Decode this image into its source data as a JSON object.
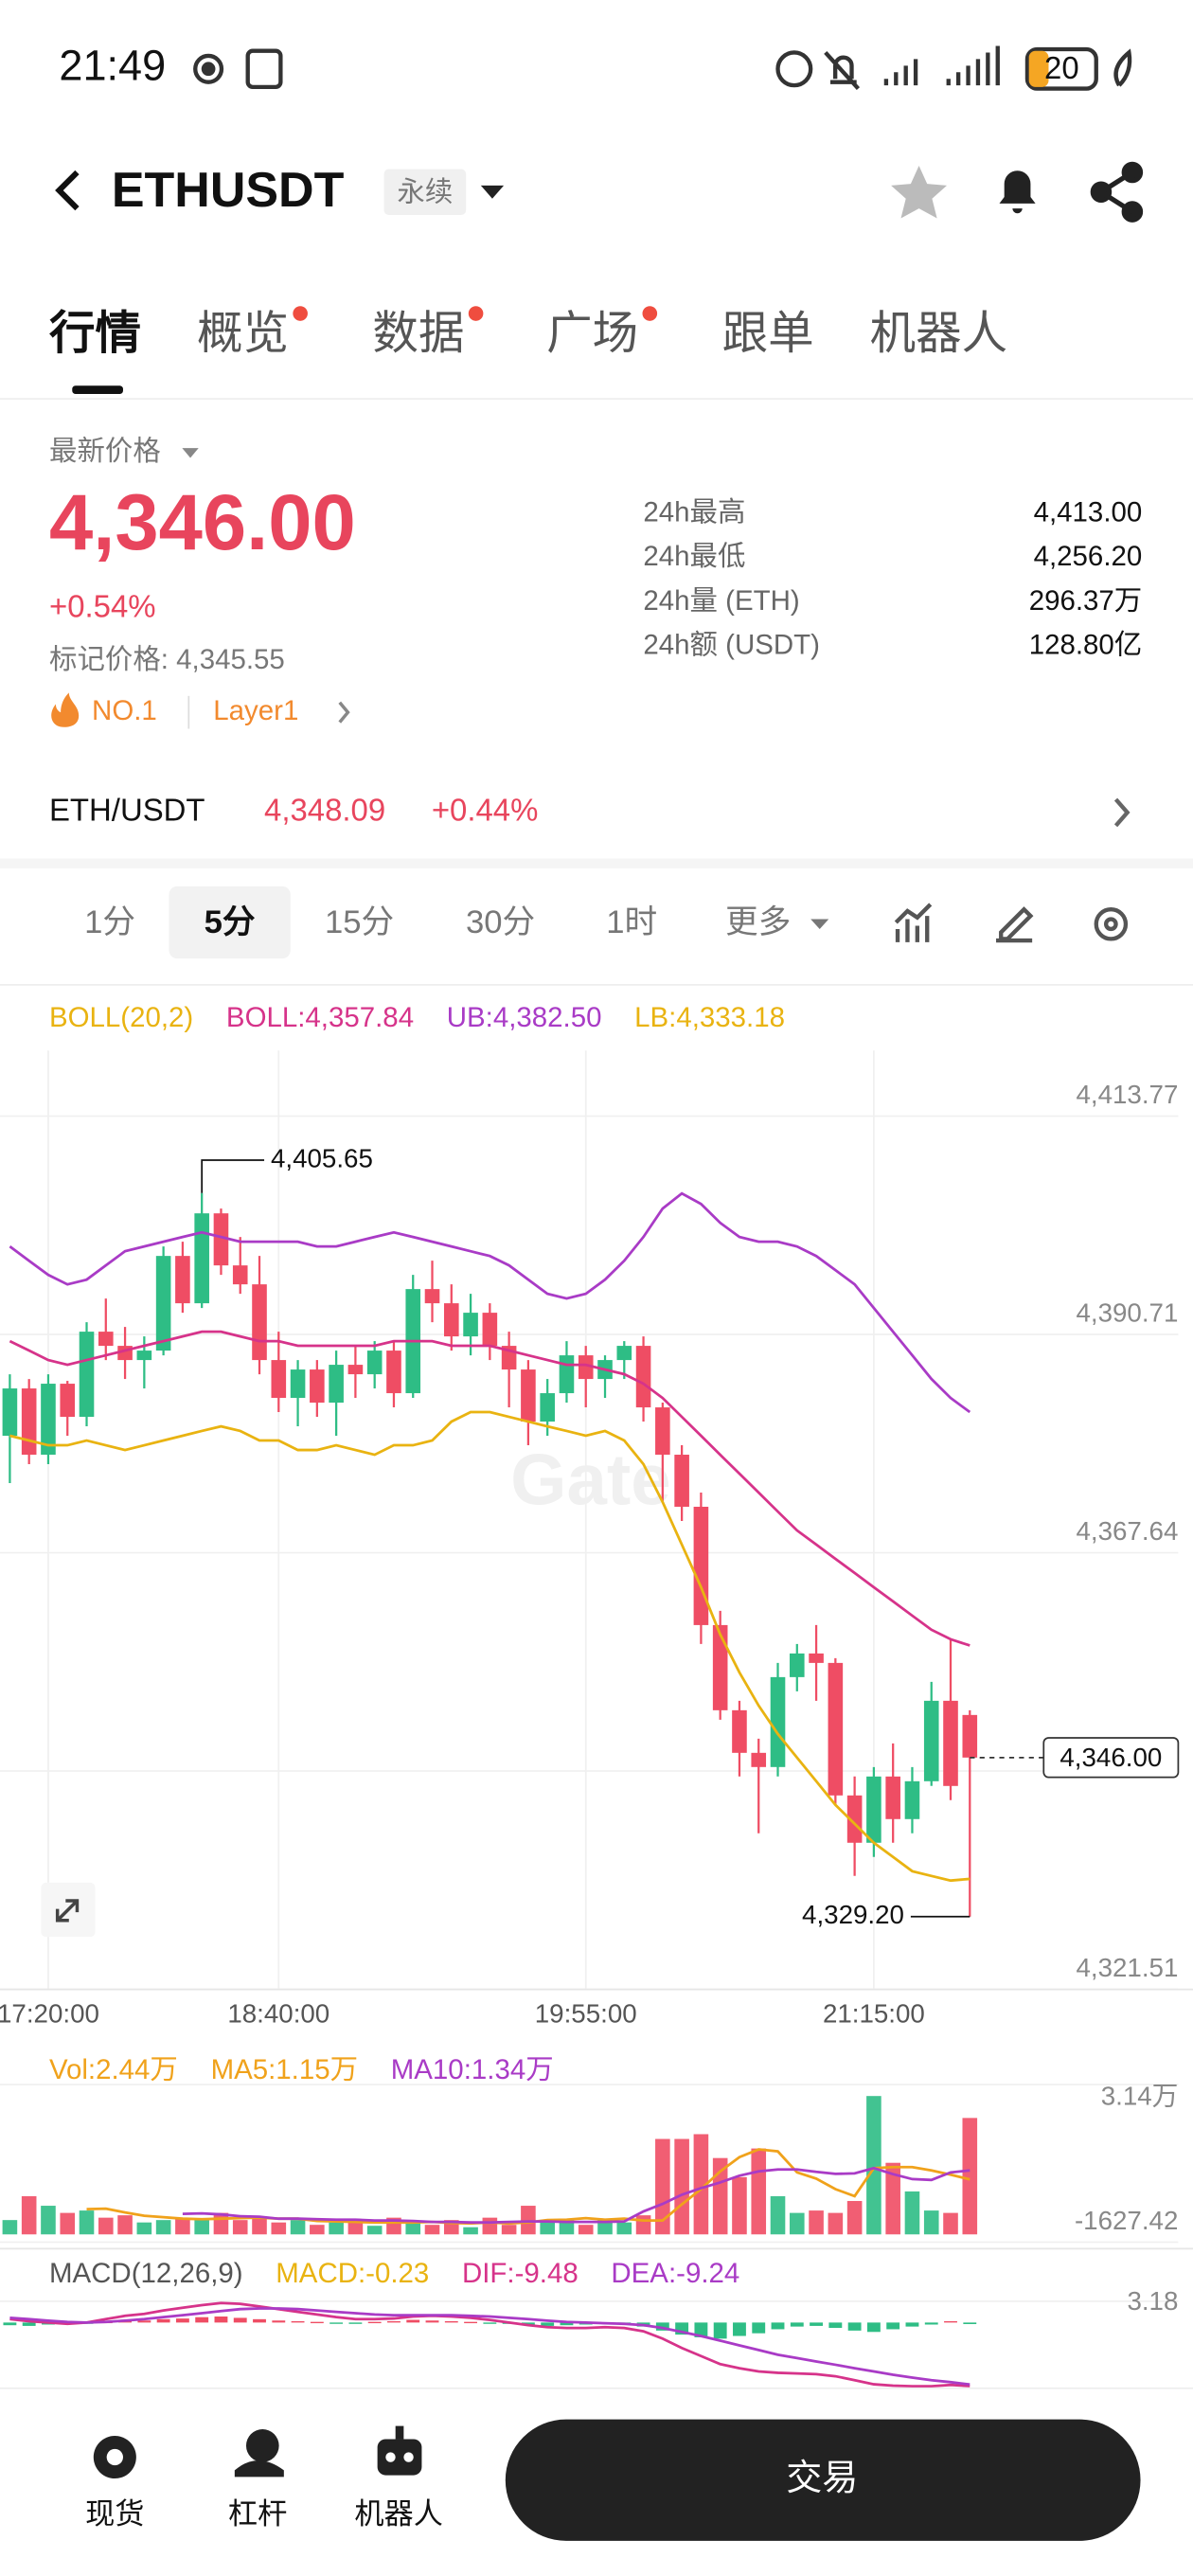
{
  "status_bar": {
    "time": "21:49",
    "battery": "20"
  },
  "header": {
    "symbol": "ETHUSDT",
    "contract": "永续"
  },
  "tabs": {
    "items": [
      "行情",
      "概览",
      "数据",
      "广场",
      "跟单",
      "机器人"
    ],
    "active": 0,
    "dots": [
      1,
      2,
      3
    ]
  },
  "ticker": {
    "price_label": "最新价格",
    "price": "4,346.00",
    "change": "+0.54%",
    "mark_price": "标记价格: 4,345.55",
    "rank": "NO.1",
    "sector": "Layer1",
    "stats": [
      [
        "24h最高",
        "4,413.00"
      ],
      [
        "24h最低",
        "4,256.20"
      ],
      [
        "24h量 (ETH)",
        "296.37万"
      ],
      [
        "24h额 (USDT)",
        "128.80亿"
      ]
    ]
  },
  "index_row": {
    "pair": "ETH/USDT",
    "price": "4,348.09",
    "change": "+0.44%"
  },
  "intervals": {
    "items": [
      "1分",
      "5分",
      "15分",
      "30分",
      "1时",
      "更多"
    ],
    "active": 1
  },
  "chart_data": [
    {
      "type": "candlestick",
      "indicator": "BOLL(20,2)",
      "watermark": "Gate",
      "up_color": "#2ebd85",
      "down_color": "#ef4d64",
      "categories": [
        null,
        null,
        "17:20:00",
        null,
        null,
        null,
        null,
        null,
        null,
        null,
        null,
        null,
        null,
        null,
        "18:40:00",
        null,
        null,
        null,
        null,
        null,
        null,
        null,
        null,
        null,
        null,
        null,
        null,
        null,
        null,
        null,
        "19:55:00",
        null,
        null,
        null,
        null,
        null,
        null,
        null,
        null,
        null,
        null,
        null,
        null,
        null,
        null,
        "21:15:00",
        null,
        null,
        null,
        null,
        null
      ],
      "candles": [
        [
          4380.0,
          4386.5,
          4375.0,
          4385.0
        ],
        [
          4385.0,
          4386.0,
          4377.0,
          4378.0
        ],
        [
          4378.0,
          4386.5,
          4377.0,
          4385.5
        ],
        [
          4385.5,
          4385.8,
          4380.0,
          4382.0
        ],
        [
          4382.0,
          4392.0,
          4381.0,
          4391.0
        ],
        [
          4391.0,
          4394.5,
          4388.0,
          4389.5
        ],
        [
          4389.5,
          4391.5,
          4386.0,
          4388.0
        ],
        [
          4388.0,
          4390.5,
          4385.0,
          4389.0
        ],
        [
          4389.0,
          4400.0,
          4388.5,
          4399.0
        ],
        [
          4399.0,
          4400.5,
          4393.0,
          4394.0
        ],
        [
          4394.0,
          4405.65,
          4393.5,
          4403.5
        ],
        [
          4403.5,
          4404.0,
          4397.0,
          4398.0
        ],
        [
          4398.0,
          4401.0,
          4395.0,
          4396.0
        ],
        [
          4396.0,
          4399.0,
          4386.5,
          4388.0
        ],
        [
          4388.0,
          4391.0,
          4382.5,
          4384.0
        ],
        [
          4384.0,
          4388.0,
          4381.0,
          4387.0
        ],
        [
          4387.0,
          4388.0,
          4382.0,
          4383.5
        ],
        [
          4383.5,
          4389.0,
          4380.0,
          4387.5
        ],
        [
          4387.5,
          4389.5,
          4384.0,
          4386.5
        ],
        [
          4386.5,
          4390.0,
          4385.0,
          4389.0
        ],
        [
          4389.0,
          4390.0,
          4383.0,
          4384.5
        ],
        [
          4384.5,
          4397.0,
          4384.0,
          4395.5
        ],
        [
          4395.5,
          4398.5,
          4392.0,
          4394.0
        ],
        [
          4394.0,
          4396.0,
          4389.0,
          4390.5
        ],
        [
          4390.5,
          4395.0,
          4388.5,
          4393.0
        ],
        [
          4393.0,
          4394.0,
          4388.0,
          4389.5
        ],
        [
          4389.5,
          4391.0,
          4383.0,
          4387.0
        ],
        [
          4387.0,
          4388.0,
          4379.0,
          4381.5
        ],
        [
          4381.5,
          4386.0,
          4380.0,
          4384.5
        ],
        [
          4384.5,
          4390.0,
          4383.5,
          4388.5
        ],
        [
          4388.5,
          4389.5,
          4383.0,
          4386.0
        ],
        [
          4386.0,
          4388.5,
          4384.0,
          4388.0
        ],
        [
          4388.0,
          4390.0,
          4386.0,
          4389.5
        ],
        [
          4389.5,
          4390.5,
          4381.5,
          4383.0
        ],
        [
          4383.0,
          4383.5,
          4373.0,
          4378.0
        ],
        [
          4378.0,
          4379.0,
          4371.0,
          4372.5
        ],
        [
          4372.5,
          4374.0,
          4358.0,
          4360.0
        ],
        [
          4360.0,
          4361.5,
          4350.0,
          4351.0
        ],
        [
          4351.0,
          4352.0,
          4344.0,
          4346.5
        ],
        [
          4346.5,
          4348.0,
          4338.0,
          4345.0
        ],
        [
          4345.0,
          4356.0,
          4344.0,
          4354.5
        ],
        [
          4354.5,
          4358.0,
          4353.0,
          4357.0
        ],
        [
          4357.0,
          4360.0,
          4352.0,
          4356.0
        ],
        [
          4356.0,
          4356.5,
          4341.0,
          4342.0
        ],
        [
          4342.0,
          4344.0,
          4333.5,
          4337.0
        ],
        [
          4337.0,
          4345.0,
          4335.5,
          4344.0
        ],
        [
          4344.0,
          4347.5,
          4337.0,
          4339.5
        ],
        [
          4339.5,
          4345.0,
          4338.0,
          4343.5
        ],
        [
          4343.5,
          4354.0,
          4343.0,
          4352.0
        ],
        [
          4352.0,
          4358.5,
          4341.5,
          4343.0
        ],
        [
          4350.5,
          4351.0,
          4329.2,
          4346.0
        ]
      ],
      "series": [
        {
          "name": "BOLL:4,357.84",
          "color": "#d6338a",
          "values": [
            4390.0,
            4389.0,
            4388.0,
            4387.5,
            4388.0,
            4388.5,
            4389.0,
            4389.5,
            4390.0,
            4390.5,
            4391.0,
            4391.0,
            4390.5,
            4390.0,
            4390.0,
            4389.5,
            4389.5,
            4389.5,
            4389.5,
            4389.5,
            4390.0,
            4390.0,
            4390.0,
            4389.5,
            4389.5,
            4389.5,
            4389.0,
            4388.5,
            4388.0,
            4387.5,
            4387.5,
            4387.0,
            4386.5,
            4385.5,
            4384.0,
            4382.0,
            4380.0,
            4378.0,
            4376.0,
            4374.0,
            4372.0,
            4370.0,
            4368.5,
            4367.0,
            4365.5,
            4364.0,
            4362.5,
            4361.0,
            4359.5,
            4358.5,
            4357.84
          ]
        },
        {
          "name": "UB:4,382.50",
          "color": "#a93bc6",
          "values": [
            4400.0,
            4398.5,
            4397.0,
            4396.0,
            4396.5,
            4398.0,
            4399.5,
            4400.0,
            4400.5,
            4401.0,
            4401.5,
            4401.0,
            4400.5,
            4400.5,
            4400.5,
            4400.5,
            4400.0,
            4400.0,
            4400.5,
            4401.0,
            4401.5,
            4401.0,
            4400.5,
            4400.0,
            4399.5,
            4399.0,
            4398.0,
            4396.5,
            4395.0,
            4394.5,
            4395.0,
            4396.5,
            4398.5,
            4401.0,
            4404.0,
            4405.6,
            4404.5,
            4402.5,
            4401.0,
            4400.5,
            4400.5,
            4400.0,
            4399.0,
            4397.5,
            4396.0,
            4393.5,
            4391.0,
            4388.5,
            4386.0,
            4384.0,
            4382.5
          ]
        },
        {
          "name": "LB:4,333.18",
          "color": "#e9b311",
          "values": [
            4380.0,
            4379.5,
            4379.0,
            4379.0,
            4379.5,
            4379.0,
            4378.5,
            4379.0,
            4379.5,
            4380.0,
            4380.5,
            4381.0,
            4380.5,
            4379.5,
            4379.5,
            4378.5,
            4378.5,
            4379.0,
            4378.5,
            4378.0,
            4379.0,
            4379.0,
            4379.5,
            4381.5,
            4382.5,
            4382.5,
            4382.0,
            4381.5,
            4381.0,
            4380.5,
            4380.0,
            4380.5,
            4379.5,
            4377.0,
            4373.0,
            4368.5,
            4364.0,
            4359.0,
            4355.0,
            4351.5,
            4348.5,
            4346.0,
            4343.5,
            4341.0,
            4339.0,
            4337.0,
            4335.5,
            4334.0,
            4333.5,
            4333.0,
            4333.18
          ]
        }
      ],
      "ylim": [
        4321.51,
        4413.77
      ],
      "yticks": [
        {
          "value": 4321.51,
          "label": "4,321.51"
        },
        {
          "value": 4344.58,
          "label": ""
        },
        {
          "value": 4367.64,
          "label": "4,367.64"
        },
        {
          "value": 4390.71,
          "label": "4,390.71"
        },
        {
          "value": 4413.77,
          "label": "4,413.77"
        }
      ],
      "annotations": {
        "high": {
          "value": 4405.65,
          "label": "4,405.65"
        },
        "low": {
          "value": 4329.2,
          "label": "4,329.20"
        },
        "last": {
          "value": 4346.0,
          "label": "4,346.00"
        }
      },
      "grid": true
    },
    {
      "type": "volume",
      "series": [
        {
          "name": "Vol:2.44万",
          "color": "#f0a21b",
          "values": [
            3000,
            8000,
            6000,
            4500,
            5000,
            3500,
            4000,
            2500,
            3000,
            3500,
            3000,
            4500,
            3000,
            3500,
            2500,
            3000,
            2000,
            2500,
            3000,
            1800,
            3500,
            2500,
            2000,
            3000,
            1500,
            3500,
            2000,
            6000,
            2500,
            3000,
            2000,
            3000,
            2500,
            4000,
            20000,
            20000,
            21000,
            16000,
            12000,
            18000,
            8000,
            4500,
            5000,
            4500,
            7000,
            29000,
            15000,
            9000,
            5000,
            4500,
            24400
          ]
        },
        {
          "name": "MA5:1.15万",
          "color": "#f0a21b",
          "values": [
            null,
            null,
            null,
            null,
            5300,
            5400,
            4600,
            3900,
            3600,
            3300,
            3200,
            3300,
            3400,
            3500,
            3300,
            3300,
            2800,
            2700,
            2600,
            2500,
            2500,
            2500,
            2600,
            2400,
            2300,
            2500,
            2300,
            2500,
            3000,
            3100,
            3400,
            3100,
            3300,
            2900,
            2900,
            6300,
            9500,
            13200,
            16200,
            17800,
            17400,
            13000,
            11700,
            9500,
            8000,
            13900,
            14100,
            14100,
            13400,
            12500,
            11500
          ]
        },
        {
          "name": "MA10:1.34万",
          "color": "#a93bc6",
          "values": [
            null,
            null,
            null,
            null,
            null,
            null,
            null,
            null,
            null,
            4300,
            4400,
            4200,
            3800,
            3700,
            3300,
            3300,
            3200,
            3100,
            3100,
            2900,
            2900,
            2800,
            2600,
            2600,
            2500,
            2500,
            2600,
            2700,
            2700,
            2600,
            2600,
            2600,
            2700,
            4800,
            6400,
            8300,
            9700,
            10900,
            12300,
            13200,
            13600,
            13600,
            13100,
            12700,
            12800,
            13900,
            12600,
            11600,
            11400,
            13000,
            13400
          ]
        }
      ],
      "ylim": [
        -1627.42,
        31400
      ],
      "yticks": [
        {
          "value": 31400,
          "label": "3.14万"
        },
        -1627.42
      ]
    },
    {
      "type": "macd",
      "indicator": "MACD(12,26,9)",
      "series": [
        {
          "name": "MACD:-0.23",
          "color": "#e9b311",
          "values": [
            -0.4,
            -0.5,
            -0.3,
            -0.2,
            -0.1,
            0.1,
            0.2,
            0.3,
            0.5,
            0.6,
            0.8,
            0.9,
            0.7,
            0.5,
            0.3,
            0.2,
            0.1,
            -0.1,
            -0.2,
            0.1,
            0.2,
            0.4,
            0.3,
            0.2,
            0.1,
            -0.1,
            -0.2,
            -0.4,
            -0.5,
            -0.4,
            -0.3,
            -0.2,
            -0.3,
            -0.6,
            -1.2,
            -1.8,
            -2.2,
            -2.4,
            -2.0,
            -1.6,
            -1.0,
            -0.6,
            -0.5,
            -0.8,
            -1.2,
            -1.4,
            -1.0,
            -0.6,
            -0.3,
            0.2,
            -0.23
          ]
        },
        {
          "name": "DIF:-9.48",
          "color": "#d6338a",
          "values": [
            0.5,
            0.2,
            0,
            -0.2,
            0,
            0.5,
            1.0,
            1.3,
            1.8,
            2.2,
            2.6,
            2.9,
            2.8,
            2.4,
            2.0,
            1.6,
            1.2,
            0.8,
            0.5,
            0.5,
            0.6,
            0.9,
            1.0,
            0.9,
            0.7,
            0.4,
            0,
            -0.4,
            -0.7,
            -0.8,
            -0.8,
            -0.7,
            -0.8,
            -1.3,
            -2.4,
            -3.8,
            -5.0,
            -6.2,
            -6.8,
            -7.3,
            -7.5,
            -7.6,
            -7.7,
            -8.0,
            -8.6,
            -9.2,
            -9.4,
            -9.5,
            -9.5,
            -9.3,
            -9.48
          ]
        },
        {
          "name": "DEA:-9.24",
          "color": "#a93bc6",
          "values": [
            0.7,
            0.5,
            0.3,
            0.1,
            0,
            0.1,
            0.3,
            0.5,
            0.8,
            1.1,
            1.4,
            1.7,
            2.0,
            2.1,
            2.1,
            2.0,
            1.8,
            1.6,
            1.4,
            1.2,
            1.1,
            1.1,
            1.1,
            1.1,
            1.0,
            0.9,
            0.7,
            0.5,
            0.3,
            0.1,
            0,
            -0.1,
            -0.2,
            -0.4,
            -0.8,
            -1.4,
            -2.0,
            -2.7,
            -3.4,
            -4.1,
            -4.8,
            -5.3,
            -5.8,
            -6.3,
            -6.8,
            -7.3,
            -7.8,
            -8.2,
            -8.6,
            -8.9,
            -9.24
          ]
        }
      ],
      "ylim": [
        -9.8,
        3.18
      ],
      "yticks": [
        3.18
      ]
    }
  ],
  "bottom_nav": {
    "items": [
      "现货",
      "杠杆",
      "机器人"
    ],
    "trade": "交易"
  }
}
